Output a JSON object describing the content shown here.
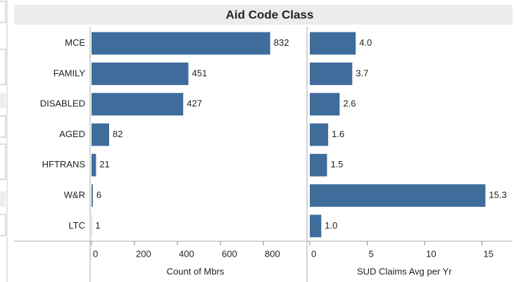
{
  "chart_data": {
    "type": "bar",
    "orientation": "horizontal",
    "title": "Aid Code Class",
    "categories": [
      "MCE",
      "FAMILY",
      "DISABLED",
      "AGED",
      "HFTRANS",
      "W&R",
      "LTC"
    ],
    "panels": [
      {
        "xlabel": "Count of Mbrs",
        "color": "#3e6d9c",
        "values": [
          832,
          451,
          427,
          82,
          21,
          6,
          1
        ],
        "xlim": [
          0,
          1000
        ],
        "xticks": [
          0,
          200,
          400,
          600,
          800
        ]
      },
      {
        "xlabel": "SUD Claims Avg per Yr",
        "color": "#3e6d9c",
        "values": [
          4.0,
          3.7,
          2.6,
          1.6,
          1.5,
          15.3,
          1.0
        ],
        "value_labels": [
          "4.0",
          "3.7",
          "2.6",
          "1.6",
          "1.5",
          "15.3",
          "1.0"
        ],
        "xlim": [
          0,
          17.7
        ],
        "xticks": [
          0,
          5,
          10,
          15
        ]
      }
    ]
  }
}
